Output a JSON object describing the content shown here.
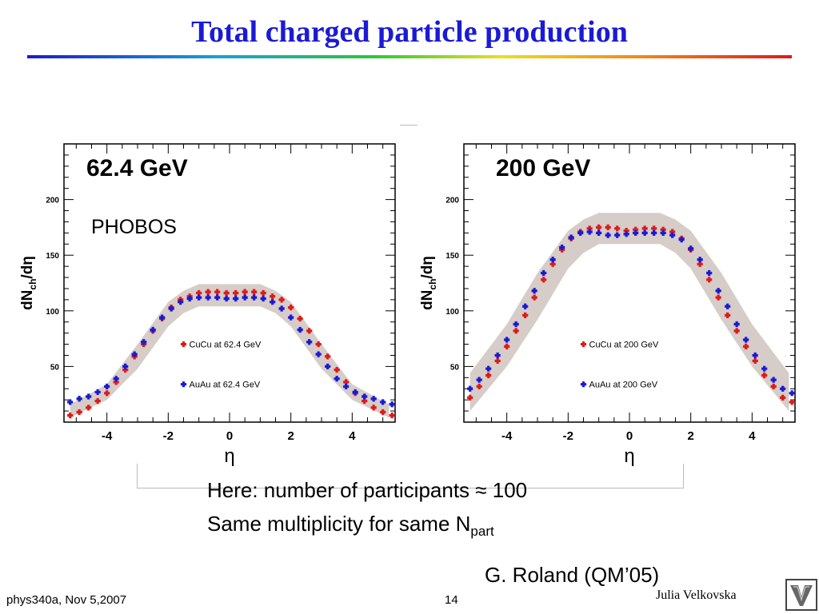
{
  "slide": {
    "title": "Total charged particle production",
    "note_line1": "Here: number of participants ≈ 100",
    "note_line2_main": "Same multiplicity for same N",
    "note_line2_sub": "part",
    "credit": "G. Roland (QM’05)",
    "footer_left": "phys340a, Nov 5,2007",
    "page_number": "14",
    "author": "Julia Velkovska"
  },
  "colors": {
    "title": "#1a1ad6",
    "cucu": "#e01a1a",
    "auau": "#1a1ad6",
    "band": "#d6cdc8"
  },
  "chart_data": [
    {
      "type": "scatter",
      "energy_label": "62.4 GeV",
      "experiment_label": "PHOBOS",
      "xlabel": "η",
      "ylabel_main": "dN",
      "ylabel_sub": "ch",
      "ylabel_tail": "/dη",
      "xlim": [
        -5.4,
        5.4
      ],
      "ylim": [
        0,
        250
      ],
      "xticks": [
        -4,
        -2,
        0,
        2,
        4
      ],
      "yticks": [
        50,
        100,
        150,
        200
      ],
      "legend_position": "center",
      "series": [
        {
          "name": "CuCu at 62.4 GeV",
          "color": "#e01a1a",
          "x": [
            -5.2,
            -4.9,
            -4.6,
            -4.3,
            -4.0,
            -3.7,
            -3.4,
            -3.1,
            -2.8,
            -2.5,
            -2.2,
            -1.9,
            -1.6,
            -1.3,
            -1.0,
            -0.7,
            -0.4,
            -0.1,
            0.2,
            0.5,
            0.8,
            1.1,
            1.4,
            1.7,
            2.0,
            2.3,
            2.6,
            2.9,
            3.2,
            3.5,
            3.8,
            4.1,
            4.4,
            4.7,
            5.0,
            5.3
          ],
          "y": [
            6,
            9,
            13,
            19,
            26,
            36,
            47,
            59,
            70,
            82,
            93,
            103,
            110,
            113,
            116,
            117,
            117,
            116,
            116,
            117,
            117,
            116,
            113,
            110,
            103,
            93,
            82,
            70,
            59,
            47,
            36,
            26,
            19,
            13,
            9,
            6
          ]
        },
        {
          "name": "AuAu at 62.4 GeV",
          "color": "#1a1ad6",
          "x": [
            -5.2,
            -4.9,
            -4.6,
            -4.3,
            -4.0,
            -3.7,
            -3.4,
            -3.1,
            -2.8,
            -2.5,
            -2.2,
            -1.9,
            -1.6,
            -1.3,
            -1.0,
            -0.7,
            -0.4,
            -0.1,
            0.2,
            0.5,
            0.8,
            1.1,
            1.4,
            1.7,
            2.0,
            2.3,
            2.6,
            2.9,
            3.2,
            3.5,
            3.8,
            4.1,
            4.4,
            4.7,
            5.0,
            5.3
          ],
          "y": [
            18,
            21,
            23,
            27,
            32,
            39,
            50,
            61,
            72,
            83,
            94,
            102,
            108,
            111,
            112,
            112,
            112,
            111,
            111,
            112,
            112,
            111,
            108,
            102,
            94,
            83,
            72,
            61,
            50,
            39,
            32,
            27,
            23,
            21,
            18,
            16
          ]
        }
      ],
      "systematic_band": {
        "x": [
          -5.2,
          -4.0,
          -3.0,
          -2.0,
          -1.5,
          -1.0,
          0,
          1.0,
          1.5,
          2.0,
          3.0,
          4.0,
          5.2
        ],
        "low": [
          4,
          20,
          48,
          86,
          98,
          104,
          104,
          104,
          98,
          86,
          48,
          20,
          4
        ],
        "high": [
          16,
          34,
          70,
          108,
          118,
          124,
          124,
          124,
          118,
          108,
          70,
          34,
          16
        ]
      }
    },
    {
      "type": "scatter",
      "energy_label": "200 GeV",
      "xlabel": "η",
      "ylabel_main": "dN",
      "ylabel_sub": "ch",
      "ylabel_tail": "/dη",
      "xlim": [
        -5.4,
        5.4
      ],
      "ylim": [
        0,
        250
      ],
      "xticks": [
        -4,
        -2,
        0,
        2,
        4
      ],
      "yticks": [
        50,
        100,
        150,
        200
      ],
      "legend_position": "center",
      "series": [
        {
          "name": "CuCu at 200 GeV",
          "color": "#e01a1a",
          "x": [
            -5.2,
            -4.9,
            -4.6,
            -4.3,
            -4.0,
            -3.7,
            -3.4,
            -3.1,
            -2.8,
            -2.5,
            -2.2,
            -1.9,
            -1.6,
            -1.3,
            -1.0,
            -0.7,
            -0.4,
            -0.1,
            0.2,
            0.5,
            0.8,
            1.1,
            1.4,
            1.7,
            2.0,
            2.3,
            2.6,
            2.9,
            3.2,
            3.5,
            3.8,
            4.1,
            4.4,
            4.7,
            5.0,
            5.3
          ],
          "y": [
            22,
            32,
            42,
            55,
            68,
            82,
            96,
            112,
            128,
            142,
            155,
            165,
            171,
            174,
            175,
            175,
            174,
            172,
            173,
            174,
            174,
            173,
            171,
            165,
            155,
            142,
            128,
            112,
            96,
            82,
            68,
            55,
            42,
            32,
            22,
            18
          ]
        },
        {
          "name": "AuAu at 200 GeV",
          "color": "#1a1ad6",
          "x": [
            -5.2,
            -4.9,
            -4.6,
            -4.3,
            -4.0,
            -3.7,
            -3.4,
            -3.1,
            -2.8,
            -2.5,
            -2.2,
            -1.9,
            -1.6,
            -1.3,
            -1.0,
            -0.7,
            -0.4,
            -0.1,
            0.2,
            0.5,
            0.8,
            1.1,
            1.4,
            1.7,
            2.0,
            2.3,
            2.6,
            2.9,
            3.2,
            3.5,
            3.8,
            4.1,
            4.4,
            4.7,
            5.0,
            5.3
          ],
          "y": [
            30,
            38,
            48,
            60,
            74,
            88,
            104,
            118,
            134,
            146,
            157,
            166,
            170,
            171,
            170,
            168,
            168,
            169,
            170,
            170,
            170,
            170,
            168,
            164,
            156,
            146,
            134,
            118,
            104,
            88,
            74,
            60,
            48,
            38,
            30,
            26
          ]
        }
      ],
      "systematic_band": {
        "x": [
          -5.2,
          -4.0,
          -3.0,
          -2.0,
          -1.5,
          -1.0,
          0,
          1.0,
          1.5,
          2.0,
          3.0,
          4.0,
          5.2
        ],
        "low": [
          10,
          50,
          92,
          138,
          152,
          160,
          160,
          160,
          152,
          138,
          92,
          50,
          10
        ],
        "high": [
          44,
          88,
          134,
          172,
          182,
          188,
          188,
          188,
          182,
          172,
          134,
          88,
          44
        ]
      }
    }
  ]
}
